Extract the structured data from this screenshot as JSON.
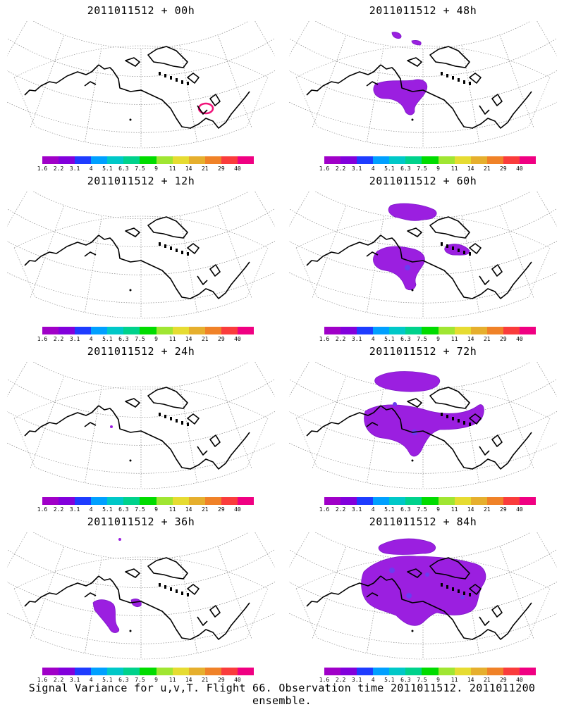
{
  "panels": [
    {
      "title": "2011011512 + 00h",
      "stage": 0
    },
    {
      "title": "2011011512 + 48h",
      "stage": 4
    },
    {
      "title": "2011011512 + 12h",
      "stage": 1
    },
    {
      "title": "2011011512 + 60h",
      "stage": 5
    },
    {
      "title": "2011011512 + 24h",
      "stage": 2
    },
    {
      "title": "2011011512 + 72h",
      "stage": 6
    },
    {
      "title": "2011011512 + 36h",
      "stage": 3
    },
    {
      "title": "2011011512 + 84h",
      "stage": 7
    }
  ],
  "colorbar": {
    "colors": [
      "#a000c8",
      "#8200dc",
      "#1e3cff",
      "#00a0ff",
      "#00c8c8",
      "#00d28c",
      "#00dc00",
      "#a0e632",
      "#e6dc32",
      "#e6af2d",
      "#f08228",
      "#fa3c3c",
      "#f00082"
    ],
    "labels": [
      "1.6",
      "2.2",
      "3.1",
      "4",
      "5.1",
      "6.3",
      "7.5",
      "9",
      "11",
      "14",
      "21",
      "29",
      "40"
    ]
  },
  "caption": "Signal Variance for u,v,T. Flight 66. Observation time 2011011512. 2011011200 ensemble.",
  "colors": {
    "signal_fill": "#9b1fe0",
    "signal_core": "#6a3cf0",
    "contour_ring": "#f0147a",
    "coast": "#000000",
    "grid": "#888888"
  }
}
